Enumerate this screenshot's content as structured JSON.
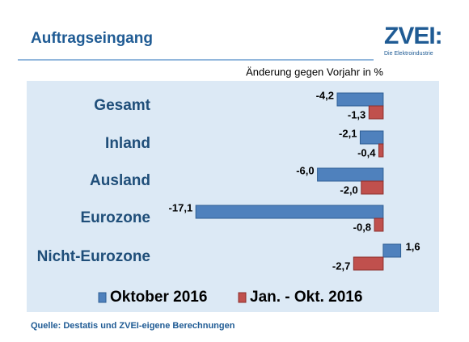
{
  "chart_data": {
    "type": "bar",
    "orientation": "horizontal",
    "title": "Auftragseingang",
    "subtitle": "Änderung gegen Vorjahr in %",
    "logo": "ZVEI:",
    "logo_tagline": "Die Elektroindustrie",
    "source": "Quelle: Destatis und ZVEI-eigene Berechnungen",
    "categories": [
      "Gesamt",
      "Inland",
      "Ausland",
      "Eurozone",
      "Nicht-Eurozone"
    ],
    "series": [
      {
        "name": "Oktober 2016",
        "color": "#4f81bd",
        "values": [
          -4.2,
          -2.1,
          -6.0,
          -17.1,
          1.6
        ],
        "value_labels": [
          "-4,2",
          "-2,1",
          "-6,0",
          "-17,1",
          "1,6"
        ]
      },
      {
        "name": "Jan. - Okt. 2016",
        "color": "#c0504d",
        "values": [
          -1.3,
          -0.4,
          -2.0,
          -0.8,
          -2.7
        ],
        "value_labels": [
          "-1,3",
          "-0,4",
          "-2,0",
          "-0,8",
          "-2,7"
        ]
      }
    ],
    "xlim": [
      -18,
      2
    ]
  }
}
